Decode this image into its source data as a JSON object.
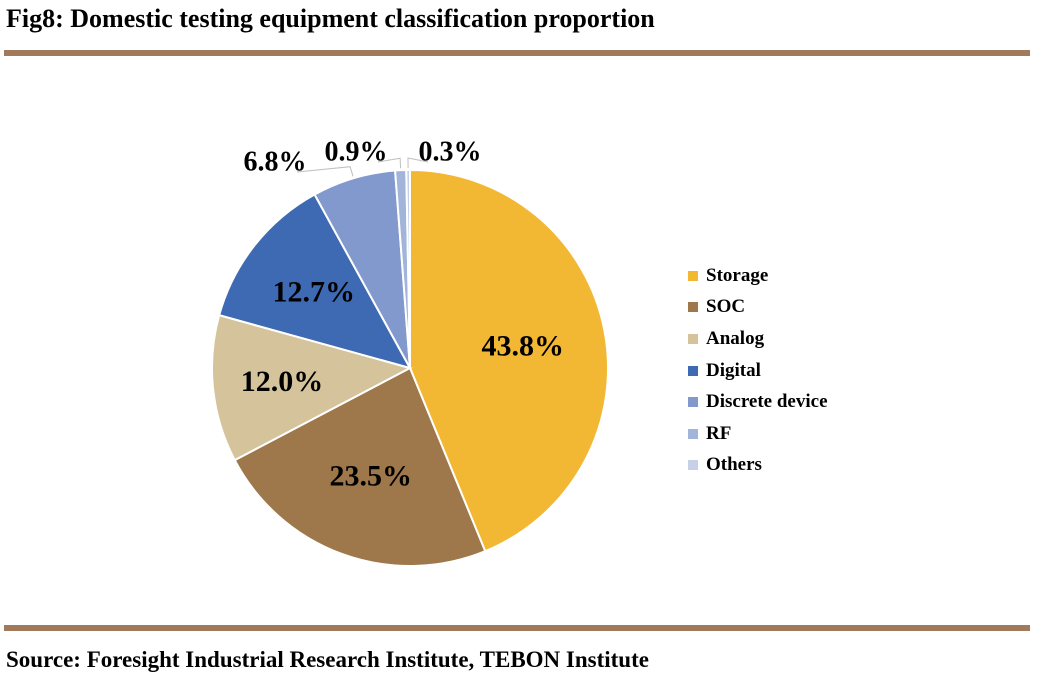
{
  "header": {
    "title": "Fig8: Domestic testing equipment classification proportion"
  },
  "footer": {
    "source": "Source: Foresight Industrial Research Institute, TEBON Institute"
  },
  "chart_data": {
    "type": "pie",
    "start_angle_deg": 0,
    "direction": "clockwise",
    "label_unit": "%",
    "slices": [
      {
        "name": "Storage",
        "value": 43.8,
        "label": "43.8%",
        "color": "#F2B733"
      },
      {
        "name": "SOC",
        "value": 23.5,
        "label": "23.5%",
        "color": "#9E774B"
      },
      {
        "name": "Analog",
        "value": 12.0,
        "label": "12.0%",
        "color": "#D5C39C"
      },
      {
        "name": "Digital",
        "value": 12.7,
        "label": "12.7%",
        "color": "#3E69B3"
      },
      {
        "name": "Discrete device",
        "value": 6.8,
        "label": "6.8%",
        "color": "#8299CE"
      },
      {
        "name": "RF",
        "value": 0.9,
        "label": "0.9%",
        "color": "#A2B4DA"
      },
      {
        "name": "Others",
        "value": 0.3,
        "label": "0.3%",
        "color": "#C6D0E7"
      }
    ],
    "legend_position": "right"
  }
}
